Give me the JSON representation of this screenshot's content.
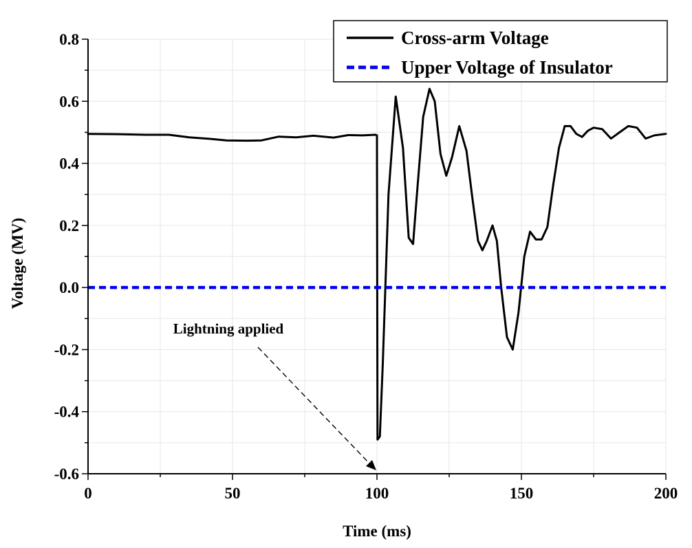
{
  "chart_data": {
    "type": "line",
    "xlabel": "Time (ms)",
    "ylabel": "Voltage (MV)",
    "xlim": [
      0,
      200
    ],
    "ylim": [
      -0.6,
      0.8
    ],
    "xticks": [
      0,
      50,
      100,
      150,
      200
    ],
    "yticks": [
      -0.6,
      -0.4,
      -0.2,
      0.0,
      0.2,
      0.4,
      0.6,
      0.8
    ],
    "xtick_labels": [
      "0",
      "50",
      "100",
      "150",
      "200"
    ],
    "ytick_labels": [
      "-0.6",
      "-0.4",
      "-0.2",
      "0.0",
      "0.2",
      "0.4",
      "0.6",
      "0.8"
    ],
    "grid": true,
    "legend_position": "top-right",
    "series": [
      {
        "name": "Cross-arm Voltage",
        "color": "#000000",
        "style": "solid",
        "x": [
          0,
          10,
          20,
          28,
          35,
          42,
          48,
          55,
          60,
          66,
          72,
          78,
          85,
          90,
          95,
          99.5,
          100,
          100.2,
          101,
          102,
          104,
          106.5,
          109,
          111,
          112.5,
          114,
          116,
          118.2,
          120,
          122,
          124,
          126,
          128.5,
          131,
          133,
          135,
          136.5,
          138,
          140,
          141.5,
          143,
          145,
          147,
          149,
          151,
          153,
          155,
          157,
          159,
          161,
          163,
          165,
          167,
          169,
          171,
          173,
          175,
          178,
          181,
          184,
          187,
          190,
          193,
          196,
          200
        ],
        "y": [
          0.495,
          0.494,
          0.492,
          0.492,
          0.484,
          0.479,
          0.474,
          0.473,
          0.474,
          0.486,
          0.484,
          0.489,
          0.483,
          0.491,
          0.49,
          0.492,
          0.49,
          -0.49,
          -0.48,
          -0.25,
          0.3,
          0.615,
          0.45,
          0.16,
          0.14,
          0.32,
          0.55,
          0.64,
          0.6,
          0.43,
          0.36,
          0.42,
          0.52,
          0.44,
          0.29,
          0.15,
          0.12,
          0.15,
          0.2,
          0.15,
          0.0,
          -0.16,
          -0.2,
          -0.08,
          0.1,
          0.18,
          0.155,
          0.155,
          0.195,
          0.33,
          0.45,
          0.52,
          0.52,
          0.495,
          0.485,
          0.505,
          0.515,
          0.51,
          0.48,
          0.5,
          0.52,
          0.515,
          0.48,
          0.49,
          0.495
        ]
      },
      {
        "name": "Upper Voltage of Insulator",
        "color": "#0000ee",
        "style": "dashed",
        "x": [
          0,
          200
        ],
        "y": [
          0.0,
          0.0
        ]
      }
    ],
    "annotations": [
      {
        "text": "Lightning applied",
        "arrow_to": [
          100,
          -0.6
        ]
      }
    ]
  }
}
